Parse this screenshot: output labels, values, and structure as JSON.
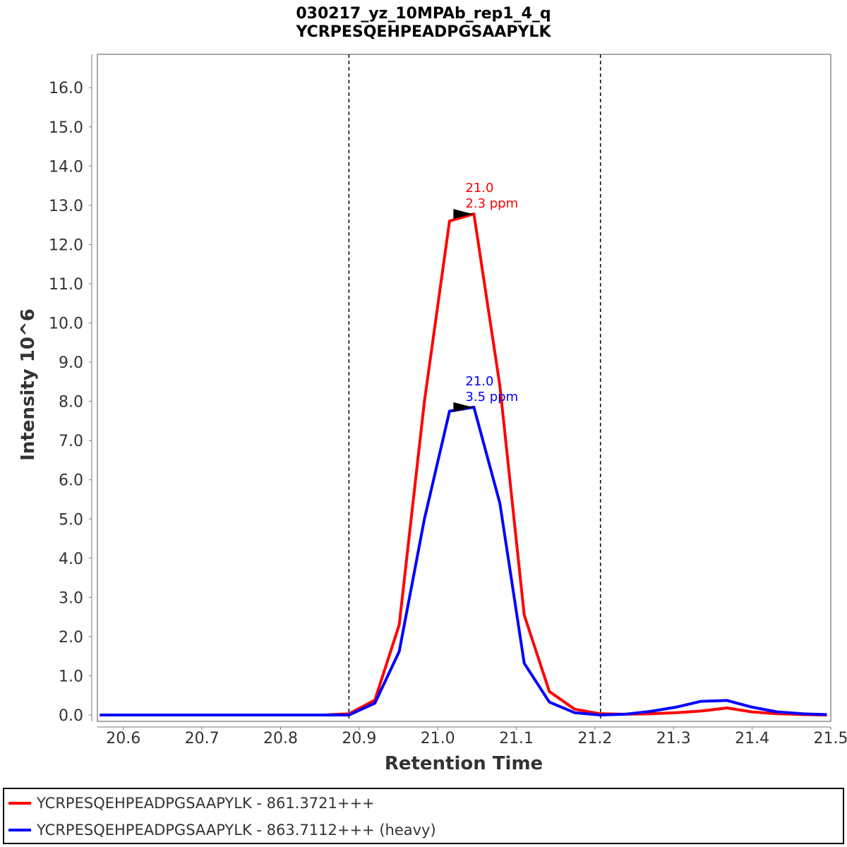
{
  "chart_data": {
    "type": "line",
    "title": "030217_yz_10MPAb_rep1_4_q",
    "subtitle": "YCRPESQEHPEADPGSAAPYLK",
    "xlabel": "Retention Time",
    "ylabel": "Intensity 10^6",
    "xlim": [
      20.567,
      21.5
    ],
    "ylim": [
      0,
      16.8
    ],
    "x_ticks": [
      "20.6",
      "20.7",
      "20.8",
      "20.9",
      "21.0",
      "21.1",
      "21.2",
      "21.3",
      "21.4",
      "21.5"
    ],
    "y_ticks": [
      "0.0",
      "1.0",
      "2.0",
      "3.0",
      "4.0",
      "5.0",
      "6.0",
      "7.0",
      "8.0",
      "9.0",
      "10.0",
      "11.0",
      "12.0",
      "13.0",
      "14.0",
      "15.0",
      "16.0"
    ],
    "integration_bounds": [
      20.887,
      21.207
    ],
    "series": [
      {
        "name": "YCRPESQEHPEADPGSAAPYLK - 861.3721+++",
        "color": "#ff0000",
        "points": [
          [
            20.57,
            0
          ],
          [
            20.6,
            0
          ],
          [
            20.63,
            0
          ],
          [
            20.66,
            0
          ],
          [
            20.69,
            0
          ],
          [
            20.72,
            0
          ],
          [
            20.76,
            0
          ],
          [
            20.79,
            0
          ],
          [
            20.82,
            0
          ],
          [
            20.855,
            0
          ],
          [
            20.887,
            0.03
          ],
          [
            20.92,
            0.38
          ],
          [
            20.951,
            2.3
          ],
          [
            20.983,
            8.0
          ],
          [
            21.015,
            12.6
          ],
          [
            21.046,
            12.78
          ],
          [
            21.079,
            8.4
          ],
          [
            21.11,
            2.55
          ],
          [
            21.142,
            0.6
          ],
          [
            21.174,
            0.15
          ],
          [
            21.207,
            0.03
          ],
          [
            21.238,
            0.02
          ],
          [
            21.27,
            0.03
          ],
          [
            21.303,
            0.06
          ],
          [
            21.335,
            0.1
          ],
          [
            21.368,
            0.18
          ],
          [
            21.4,
            0.08
          ],
          [
            21.432,
            0.03
          ],
          [
            21.465,
            0.01
          ],
          [
            21.495,
            0
          ]
        ]
      },
      {
        "name": "YCRPESQEHPEADPGSAAPYLK - 863.7112+++ (heavy)",
        "color": "#0000ff",
        "points": [
          [
            20.57,
            0
          ],
          [
            20.6,
            0
          ],
          [
            20.63,
            0
          ],
          [
            20.66,
            0
          ],
          [
            20.69,
            0
          ],
          [
            20.72,
            0
          ],
          [
            20.76,
            0
          ],
          [
            20.79,
            0
          ],
          [
            20.82,
            0
          ],
          [
            20.855,
            0
          ],
          [
            20.887,
            0
          ],
          [
            20.92,
            0.3
          ],
          [
            20.951,
            1.62
          ],
          [
            20.983,
            5.0
          ],
          [
            21.015,
            7.75
          ],
          [
            21.046,
            7.85
          ],
          [
            21.079,
            5.4
          ],
          [
            21.11,
            1.32
          ],
          [
            21.142,
            0.33
          ],
          [
            21.174,
            0.06
          ],
          [
            21.207,
            0
          ],
          [
            21.238,
            0.02
          ],
          [
            21.27,
            0.09
          ],
          [
            21.303,
            0.2
          ],
          [
            21.335,
            0.35
          ],
          [
            21.368,
            0.37
          ],
          [
            21.4,
            0.2
          ],
          [
            21.432,
            0.08
          ],
          [
            21.465,
            0.03
          ],
          [
            21.495,
            0.01
          ]
        ]
      }
    ],
    "annotations": [
      {
        "x": 21.046,
        "y": 12.78,
        "line1": "21.0",
        "line2": "2.3 ppm",
        "color": "#ff0000"
      },
      {
        "x": 21.046,
        "y": 7.85,
        "line1": "21.0",
        "line2": "3.5 ppm",
        "color": "#0000ff"
      }
    ]
  },
  "legend": {
    "items": [
      {
        "label": "YCRPESQEHPEADPGSAAPYLK - 861.3721+++",
        "color": "#ff0000"
      },
      {
        "label": "YCRPESQEHPEADPGSAAPYLK - 863.7112+++ (heavy)",
        "color": "#0000ff"
      }
    ]
  }
}
